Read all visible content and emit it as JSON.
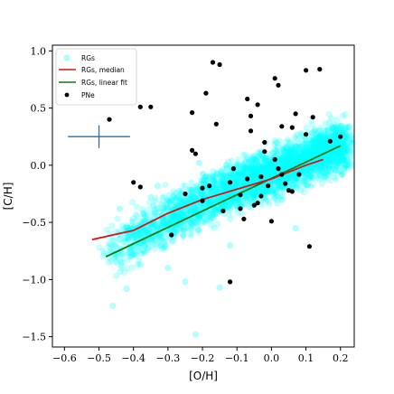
{
  "chart_data": {
    "type": "scatter",
    "xlabel": "[O/H]",
    "ylabel": "[C/H]",
    "xlim": [
      -0.635,
      0.24
    ],
    "ylim": [
      -1.59,
      1.05
    ],
    "xticks": [
      -0.6,
      -0.5,
      -0.4,
      -0.3,
      -0.2,
      -0.1,
      0.0,
      0.1,
      0.2
    ],
    "xtick_labels": [
      "−0.6",
      "−0.5",
      "−0.4",
      "−0.3",
      "−0.2",
      "−0.1",
      "0.0",
      "0.1",
      "0.2"
    ],
    "yticks": [
      -1.5,
      -1.0,
      -0.5,
      0.0,
      0.5,
      1.0
    ],
    "ytick_labels": [
      "−1.5",
      "−1.0",
      "−0.5",
      "0.0",
      "0.5",
      "1.0"
    ],
    "grid": false,
    "legend_position": "top-left",
    "series": [
      {
        "name": "RGs",
        "kind": "cloud",
        "color": "#00ffff",
        "alpha": 0.22,
        "band_center": [
          [
            -0.48,
            -0.78
          ],
          [
            -0.4,
            -0.63
          ],
          [
            -0.3,
            -0.47
          ],
          [
            -0.2,
            -0.31
          ],
          [
            -0.1,
            -0.18
          ],
          [
            0.0,
            -0.07
          ],
          [
            0.1,
            0.06
          ],
          [
            0.2,
            0.17
          ]
        ],
        "band_halfwidth": 0.18,
        "outliers": [
          [
            -0.46,
            -1.23
          ],
          [
            -0.42,
            -1.08
          ],
          [
            -0.38,
            -0.87
          ],
          [
            -0.44,
            -0.38
          ],
          [
            -0.35,
            -0.28
          ],
          [
            -0.22,
            -1.48
          ],
          [
            -0.15,
            -1.07
          ],
          [
            -0.25,
            -1.02
          ],
          [
            -0.3,
            -0.9
          ],
          [
            -0.21,
            0.02
          ],
          [
            -0.33,
            -0.18
          ],
          [
            -0.12,
            -0.7
          ],
          [
            0.07,
            -0.55
          ],
          [
            -0.05,
            0.06
          ],
          [
            0.21,
            0.24
          ]
        ]
      },
      {
        "name": "RGs, median",
        "kind": "line",
        "color": "#dd1111",
        "x": [
          -0.52,
          -0.4,
          -0.3,
          -0.2,
          -0.1,
          0.0,
          0.1,
          0.15
        ],
        "y": [
          -0.65,
          -0.57,
          -0.42,
          -0.3,
          -0.21,
          -0.12,
          0.0,
          0.05
        ]
      },
      {
        "name": "RGs, linear fit",
        "kind": "line",
        "color": "#117711",
        "x": [
          -0.48,
          0.2
        ],
        "y": [
          -0.8,
          0.17
        ]
      },
      {
        "name": "PNe",
        "kind": "points",
        "color": "#000000",
        "x": [
          -0.47,
          -0.38,
          -0.35,
          -0.4,
          -0.38,
          -0.29,
          -0.17,
          -0.19,
          -0.15,
          -0.23,
          -0.23,
          -0.22,
          -0.2,
          -0.18,
          -0.12,
          -0.16,
          -0.07,
          -0.06,
          -0.04,
          -0.02,
          0.02,
          0.01,
          0.03,
          0.06,
          0.07,
          0.1,
          0.12,
          0.14,
          0.17,
          0.2,
          0.1,
          0.11,
          -0.11,
          -0.09,
          -0.07,
          -0.05,
          -0.03,
          -0.01,
          0.02,
          0.04,
          0.06,
          -0.08,
          -0.04,
          0.0,
          0.03,
          0.08,
          -0.12,
          -0.2,
          -0.25,
          -0.14,
          -0.09,
          -0.03,
          0.05,
          -0.06,
          -0.02,
          0.01
        ],
        "y": [
          0.4,
          0.51,
          0.51,
          -0.15,
          -0.19,
          -0.61,
          0.9,
          0.63,
          0.88,
          0.46,
          0.13,
          0.1,
          -0.2,
          -0.18,
          -1.02,
          0.36,
          0.58,
          0.3,
          0.53,
          0.2,
          0.7,
          0.76,
          0.34,
          0.33,
          0.45,
          0.83,
          0.42,
          0.84,
          0.21,
          0.25,
          0.27,
          -0.71,
          -0.03,
          -0.38,
          -0.12,
          -0.35,
          -0.27,
          -0.18,
          -0.03,
          -0.16,
          -0.23,
          -0.47,
          -0.33,
          -0.49,
          -0.08,
          -0.08,
          -0.15,
          -0.31,
          -0.25,
          -0.4,
          -0.26,
          -0.1,
          -0.22,
          0.43,
          0.12,
          0.05
        ]
      }
    ],
    "error_bar": {
      "x": -0.5,
      "y": 0.25,
      "x_err": 0.09,
      "y_err": 0.1,
      "color": "#1f6fb4"
    }
  }
}
